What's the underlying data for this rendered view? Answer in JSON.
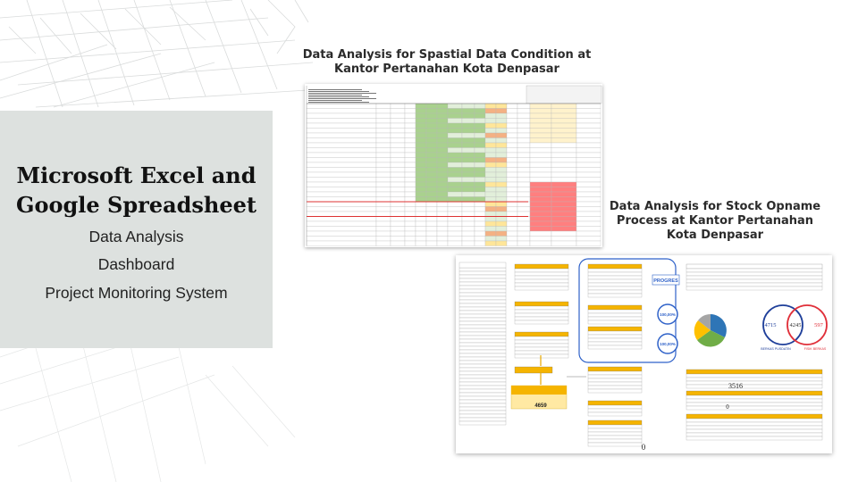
{
  "left_panel": {
    "title_line1": "Microsoft Excel and",
    "title_line2": "Google Spreadsheet",
    "items": [
      "Data Analysis",
      "Dashboard",
      "Project Monitoring System"
    ]
  },
  "section1": {
    "title_line1": "Data Analysis for Spastial Data Condition at",
    "title_line2": "Kantor Pertanahan Kota Denpasar"
  },
  "section2": {
    "title_line1": "Data Analysis for Stock Opname",
    "title_line2": "Process at Kantor Pertanahan",
    "title_line3": "Kota Denpasar"
  },
  "dashboard": {
    "progress_label": "PROGRES",
    "pct_1": "100,00%",
    "pct_2": "100,00%",
    "venn_left": "4715",
    "venn_mid": "4245",
    "venn_right": "597",
    "venn_left_label": "BERKAS PUSDATIN",
    "venn_right_label": "FISIK BERKAS",
    "big_number_1": "3516",
    "big_number_2": "0",
    "big_number_3": "4659",
    "big_number_4": "0"
  },
  "colors": {
    "panel_bg": "#dde1df",
    "sheet_green": "#a9d18e",
    "sheet_light_green": "#e2efda",
    "sheet_yellow": "#ffe699",
    "sheet_orange": "#f4b183",
    "sheet_red": "#ff7f7f",
    "header_gold": "#f5b400",
    "venn_blue": "#1f3f9a",
    "venn_red": "#e0303a",
    "progress_blue": "#2f62c9"
  }
}
